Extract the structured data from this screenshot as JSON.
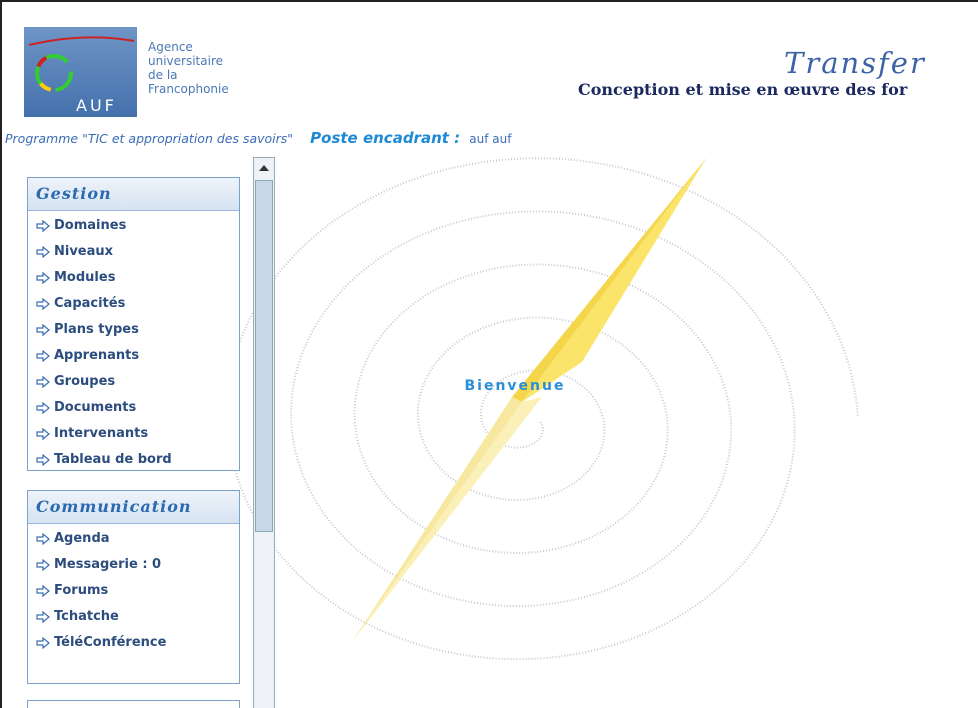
{
  "header": {
    "logo_lines": [
      "Agence",
      "universitaire",
      "de la",
      "Francophonie"
    ],
    "logo_acronym": "AUF",
    "title": "Transfer",
    "subtitle": "Conception et mise en œuvre des for"
  },
  "info_bar": {
    "program": "Programme \"TIC et appropriation des savoirs\"",
    "role_label": "Poste encadrant :",
    "user": "auf  auf"
  },
  "sidebar": {
    "sections": [
      {
        "title": "Gestion",
        "items": [
          "Domaines",
          "Niveaux",
          "Modules",
          "Capacités",
          "Plans types",
          "Apprenants",
          "Groupes",
          "Documents",
          "Intervenants",
          "Tableau de bord"
        ]
      },
      {
        "title": "Communication",
        "items": [
          "Agenda",
          "Messagerie : 0",
          "Forums",
          "Tchatche",
          "TéléConférence"
        ]
      }
    ]
  },
  "main": {
    "welcome": "Bienvenue"
  }
}
